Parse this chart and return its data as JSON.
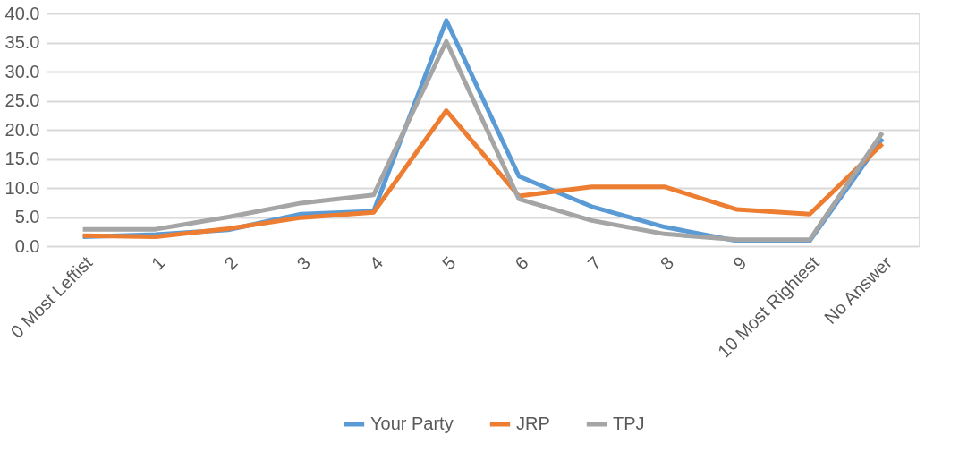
{
  "chart_data": {
    "type": "line",
    "categories": [
      "0 Most Leftist",
      "1",
      "2",
      "3",
      "4",
      "5",
      "6",
      "7",
      "8",
      "9",
      "10 Most Rightest",
      "No Answer"
    ],
    "series": [
      {
        "name": "Your Party",
        "color": "#5b9bd5",
        "values": [
          1.6,
          2.0,
          2.8,
          5.5,
          6.0,
          38.8,
          12.0,
          6.8,
          3.3,
          0.9,
          0.9,
          18.5
        ]
      },
      {
        "name": "JRP",
        "color": "#ed7d31",
        "values": [
          1.8,
          1.6,
          3.0,
          4.9,
          5.8,
          23.3,
          8.6,
          10.2,
          10.2,
          6.3,
          5.5,
          17.6
        ]
      },
      {
        "name": "TPJ",
        "color": "#a5a5a5",
        "values": [
          2.9,
          2.9,
          5.0,
          7.4,
          8.8,
          35.2,
          8.1,
          4.4,
          2.1,
          1.1,
          1.1,
          19.5
        ]
      }
    ],
    "ylim": [
      0,
      40
    ],
    "yticks": [
      {
        "value": 0,
        "label": "0.0"
      },
      {
        "value": 5,
        "label": "5.0"
      },
      {
        "value": 10,
        "label": "10.0"
      },
      {
        "value": 15,
        "label": "15.0"
      },
      {
        "value": 20,
        "label": "20.0"
      },
      {
        "value": 25,
        "label": "25.0"
      },
      {
        "value": 30,
        "label": "30.0"
      },
      {
        "value": 35,
        "label": "35.0"
      },
      {
        "value": 40,
        "label": "40.0"
      }
    ],
    "grid": "y",
    "legend": "bottom",
    "marker": "none",
    "line_style": "solid"
  }
}
